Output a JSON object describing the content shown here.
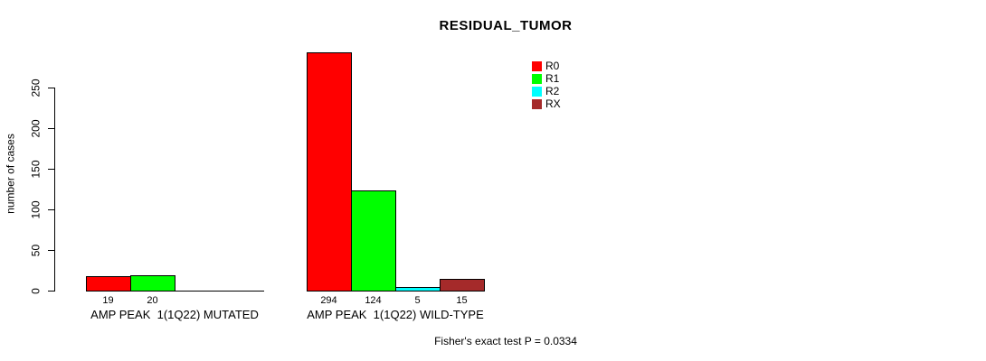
{
  "chart_data": {
    "type": "bar",
    "title": "RESIDUAL_TUMOR",
    "ylabel": "number of cases",
    "xlabel": "",
    "ylim": [
      0,
      250
    ],
    "yticks": [
      0,
      50,
      100,
      150,
      200,
      250
    ],
    "grid": false,
    "legend_position": "inside-top-right",
    "categories": [
      "AMP PEAK  1(1Q22) MUTATED",
      "AMP PEAK  1(1Q22) WILD-TYPE"
    ],
    "series": [
      {
        "name": "R0",
        "color": "#FF0000",
        "values": [
          19,
          294
        ]
      },
      {
        "name": "R1",
        "color": "#00FF00",
        "values": [
          20,
          124
        ]
      },
      {
        "name": "R2",
        "color": "#00FFFF",
        "values": [
          0,
          5
        ]
      },
      {
        "name": "RX",
        "color": "#A52A2A",
        "values": [
          0,
          15
        ]
      }
    ],
    "bar_value_labels_shown": true,
    "annotation": "Fisher's exact test P = 0.0334"
  },
  "colors": {
    "axis": "#000000",
    "text": "#000000",
    "background": "#FFFFFF"
  }
}
